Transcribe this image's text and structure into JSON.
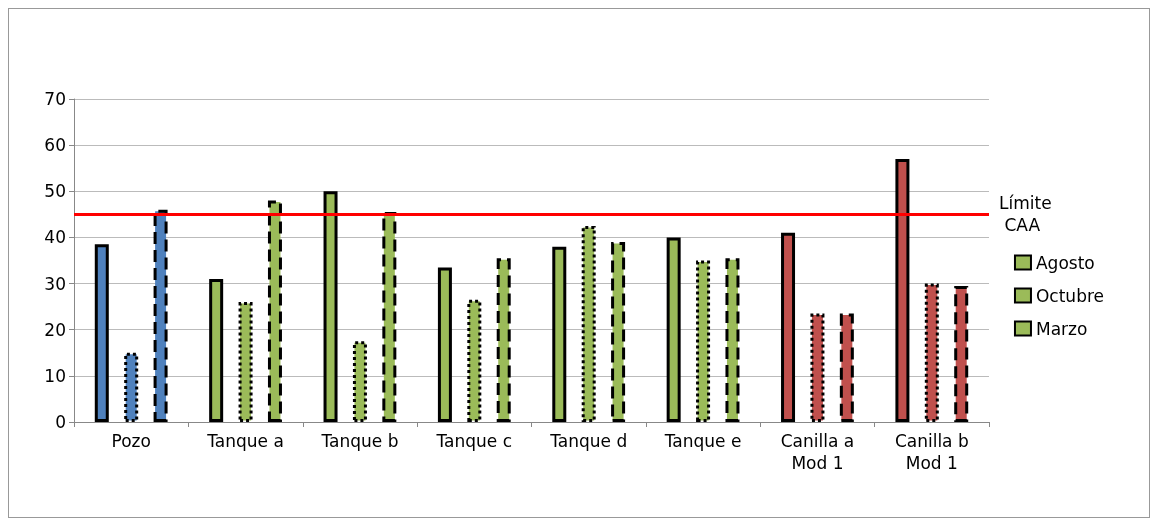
{
  "chart_data": {
    "type": "bar",
    "categories": [
      "Pozo",
      "Tanque a",
      "Tanque b",
      "Tanque c",
      "Tanque d",
      "Tanque e",
      "Canilla a\nMod 1",
      "Canilla b\nMod 1"
    ],
    "series": [
      {
        "name": "Agosto",
        "color": "#9bbb59",
        "line_style": "solid",
        "colors": [
          "#4f81bd",
          "#9bbb59",
          "#9bbb59",
          "#9bbb59",
          "#9bbb59",
          "#9bbb59",
          "#c0504d",
          "#c0504d"
        ],
        "values": [
          38.5,
          31,
          50,
          33.5,
          38,
          40,
          41,
          57
        ]
      },
      {
        "name": "Octubre",
        "color": "#9bbb59",
        "line_style": "dotted",
        "colors": [
          "#4f81bd",
          "#9bbb59",
          "#9bbb59",
          "#9bbb59",
          "#9bbb59",
          "#9bbb59",
          "#c0504d",
          "#c0504d"
        ],
        "values": [
          15,
          26,
          17.5,
          26.5,
          42.5,
          35,
          23.5,
          30
        ]
      },
      {
        "name": "Marzo",
        "color": "#9bbb59",
        "line_style": "dashed",
        "colors": [
          "#4f81bd",
          "#9bbb59",
          "#9bbb59",
          "#9bbb59",
          "#9bbb59",
          "#9bbb59",
          "#c0504d",
          "#c0504d"
        ],
        "values": [
          46,
          48,
          45.5,
          35.5,
          39,
          35.5,
          23.5,
          29.5
        ]
      }
    ],
    "ref_lines": [
      {
        "axis": "y",
        "value": 45,
        "label": "Límite CAA",
        "color": "#ff0000"
      }
    ],
    "ylim": [
      0,
      70
    ],
    "yticks": [
      0,
      10,
      20,
      30,
      40,
      50,
      60,
      70
    ],
    "grid": "y",
    "legend": "right"
  }
}
